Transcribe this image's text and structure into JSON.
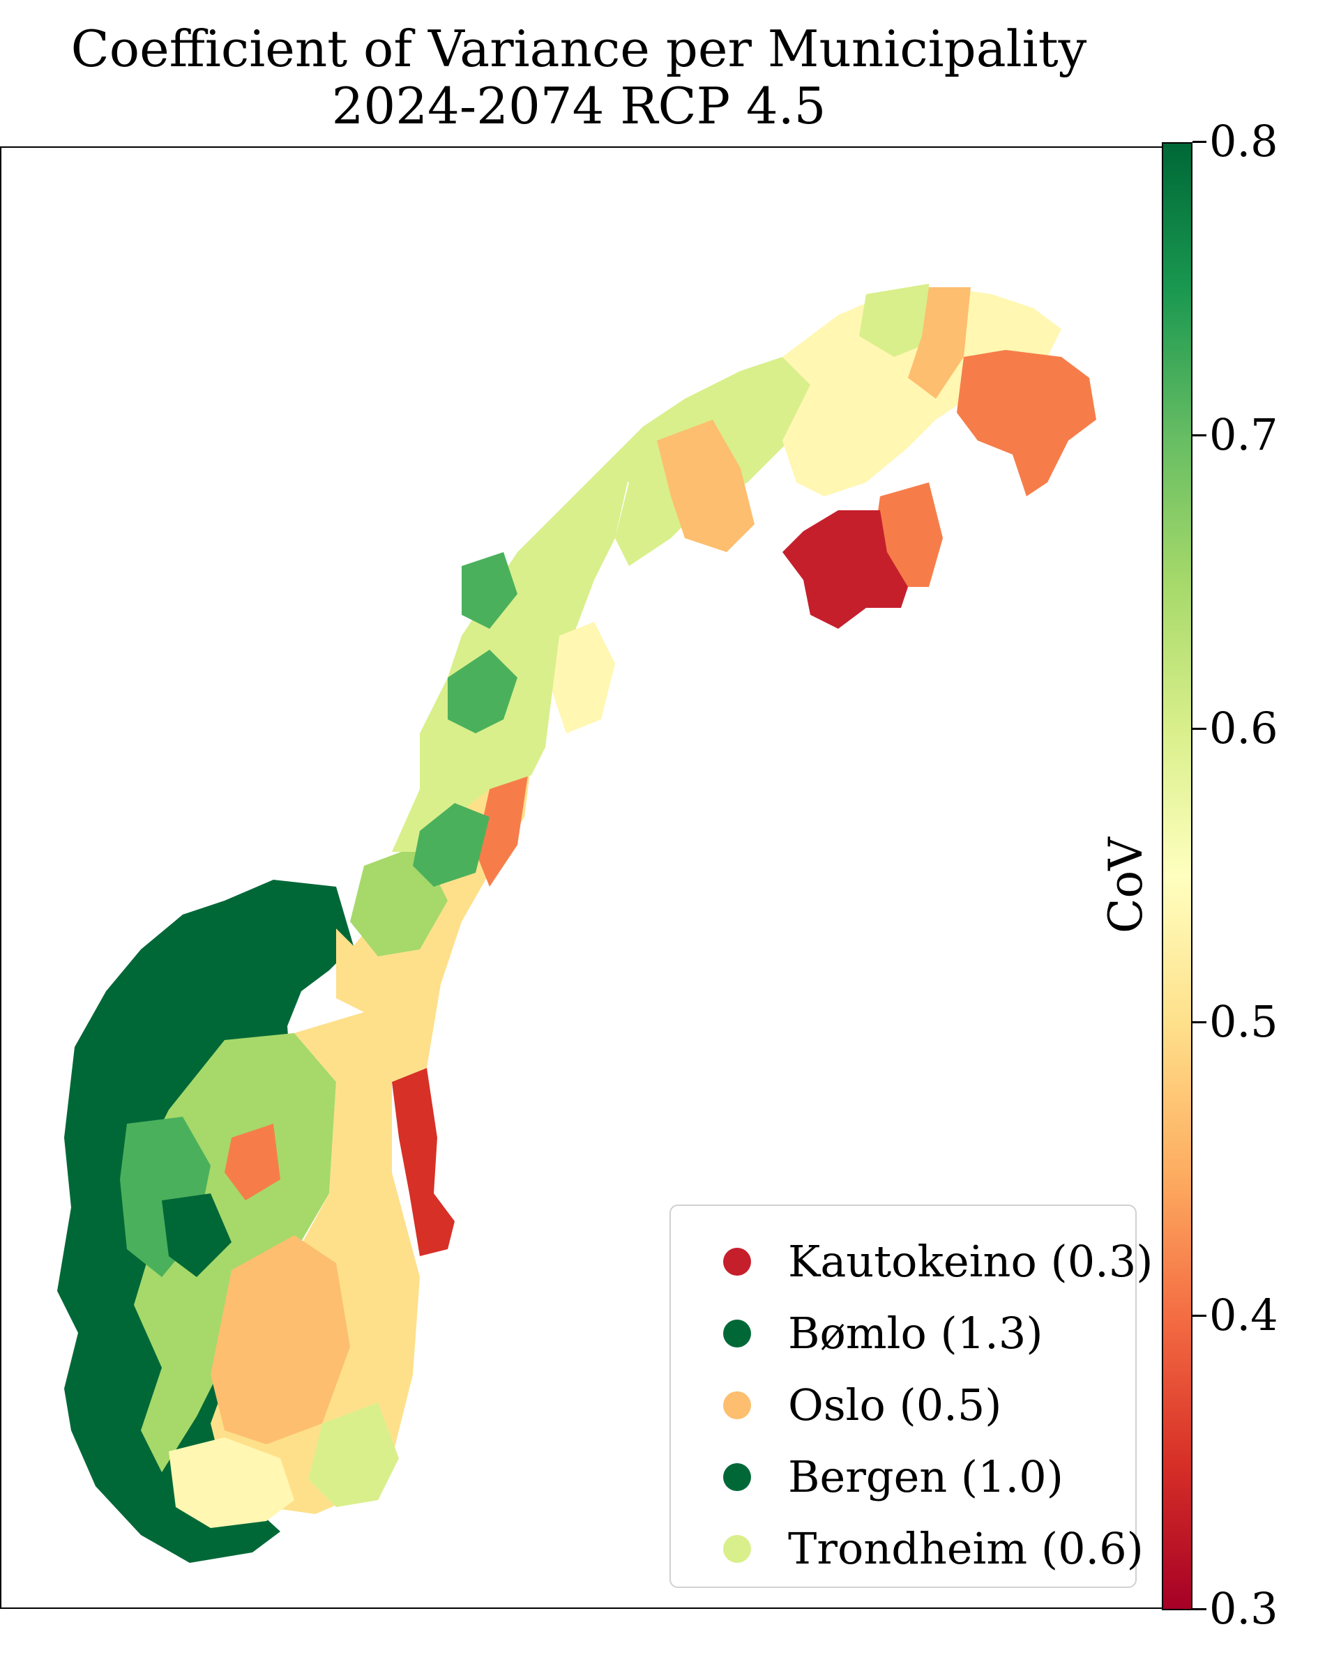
{
  "title": {
    "line1": "Coefficient of Variance per Municipality",
    "line2": "2024-2074 RCP 4.5"
  },
  "colorbar": {
    "label": "CoV",
    "min": 0.3,
    "max": 0.8,
    "colormap": "RdYlGn",
    "ticks": [
      "0.3",
      "0.4",
      "0.5",
      "0.6",
      "0.7",
      "0.8"
    ]
  },
  "legend": {
    "items": [
      {
        "label": "Kautokeino (0.3)",
        "color": "#c51f2c"
      },
      {
        "label": "Bømlo (1.3)",
        "color": "#006837"
      },
      {
        "label": "Oslo (0.5)",
        "color": "#fdbe6f"
      },
      {
        "label": "Bergen (1.0)",
        "color": "#006837"
      },
      {
        "label": "Trondheim (0.6)",
        "color": "#d9ef8b"
      }
    ]
  },
  "map": {
    "region": "Norway",
    "colors": {
      "dark_green": "#006837",
      "green": "#4bb05c",
      "light_green": "#a6d96a",
      "pale_green": "#d9ef8b",
      "yellow": "#fee08b",
      "pale_yellow": "#fff7b2",
      "light_orange": "#fdbe6f",
      "orange": "#f67d4a",
      "red": "#d73027",
      "dark_red": "#c51f2c"
    }
  }
}
